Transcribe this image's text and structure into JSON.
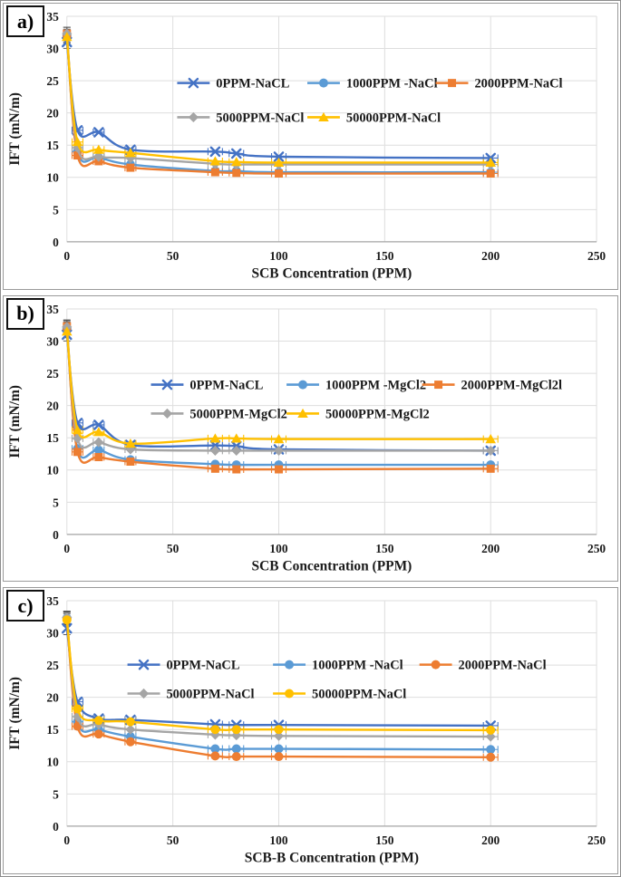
{
  "figure": {
    "panels": [
      {
        "label": "a)"
      },
      {
        "label": "b)"
      },
      {
        "label": "c)"
      }
    ]
  },
  "chart_data": [
    {
      "panel_label": "a)",
      "type": "line",
      "title": "",
      "xlabel": "SCB Concentration (PPM)",
      "ylabel": "IFT (mN/m)",
      "xlim": [
        0,
        250
      ],
      "ylim": [
        0,
        35
      ],
      "xticks": [
        0,
        50,
        100,
        150,
        200,
        250
      ],
      "yticks": [
        0,
        5,
        10,
        15,
        20,
        25,
        30,
        35
      ],
      "grid": true,
      "legend_position": "inside-top-two-rows",
      "x": [
        0,
        5,
        15,
        30,
        70,
        80,
        100,
        200
      ],
      "series": [
        {
          "name": "0PPM-NaCL",
          "color": "#4472C4",
          "marker": "x",
          "values": [
            31.0,
            17.3,
            17.0,
            14.3,
            14.0,
            13.7,
            13.2,
            13.0
          ]
        },
        {
          "name": "1000PPM -NaCl",
          "color": "#5B9BD5",
          "marker": "circle",
          "values": [
            32.0,
            14.0,
            13.1,
            12.0,
            11.0,
            11.0,
            10.8,
            10.8
          ]
        },
        {
          "name": "2000PPM-NaCl",
          "color": "#ED7D31",
          "marker": "square",
          "values": [
            32.3,
            13.4,
            12.5,
            11.5,
            10.8,
            10.7,
            10.6,
            10.6
          ]
        },
        {
          "name": "5000PPM-NaCl",
          "color": "#A5A5A5",
          "marker": "diamond",
          "values": [
            32.3,
            14.6,
            13.2,
            13.0,
            12.1,
            12.0,
            12.0,
            12.0
          ]
        },
        {
          "name": "50000PPM-NaCl",
          "color": "#FFC000",
          "marker": "triangle",
          "values": [
            31.8,
            15.5,
            14.3,
            13.8,
            12.5,
            12.4,
            12.3,
            12.3
          ]
        }
      ]
    },
    {
      "panel_label": "b)",
      "type": "line",
      "title": "",
      "xlabel": "SCB Concentration (PPM)",
      "ylabel": "IFT (mN/m)",
      "xlim": [
        0,
        250
      ],
      "ylim": [
        0,
        35
      ],
      "xticks": [
        0,
        50,
        100,
        150,
        200,
        250
      ],
      "yticks": [
        0,
        5,
        10,
        15,
        20,
        25,
        30,
        35
      ],
      "grid": true,
      "legend_position": "inside-top-two-rows",
      "x": [
        0,
        5,
        15,
        30,
        70,
        80,
        100,
        200
      ],
      "series": [
        {
          "name": "0PPM-NaCL",
          "color": "#4472C4",
          "marker": "x",
          "values": [
            31.0,
            17.3,
            17.0,
            13.9,
            13.8,
            13.7,
            13.2,
            13.0
          ]
        },
        {
          "name": "1000PPM -MgCl2",
          "color": "#5B9BD5",
          "marker": "circle",
          "values": [
            32.0,
            13.3,
            13.1,
            11.6,
            10.9,
            10.8,
            10.8,
            10.8
          ]
        },
        {
          "name": "2000PPM-MgCl2l",
          "color": "#ED7D31",
          "marker": "square",
          "values": [
            32.3,
            12.8,
            12.0,
            11.3,
            10.2,
            10.1,
            10.1,
            10.2
          ]
        },
        {
          "name": "5000PPM-MgCl2",
          "color": "#A5A5A5",
          "marker": "diamond",
          "values": [
            32.2,
            14.9,
            14.3,
            13.2,
            13.0,
            13.0,
            13.0,
            13.0
          ]
        },
        {
          "name": "50000PPM-MgCl2",
          "color": "#FFC000",
          "marker": "triangle",
          "values": [
            31.5,
            16.2,
            15.9,
            14.1,
            14.9,
            14.9,
            14.8,
            14.8
          ]
        }
      ]
    },
    {
      "panel_label": "c)",
      "type": "line",
      "title": "",
      "xlabel": "SCB-B Concentration (PPM)",
      "ylabel": "IFT (mN/m)",
      "xlim": [
        0,
        250
      ],
      "ylim": [
        0,
        35
      ],
      "xticks": [
        0,
        50,
        100,
        150,
        200,
        250
      ],
      "yticks": [
        0,
        5,
        10,
        15,
        20,
        25,
        30,
        35
      ],
      "grid": true,
      "legend_position": "inside-top-two-rows",
      "x": [
        0,
        5,
        15,
        30,
        70,
        80,
        100,
        200
      ],
      "series": [
        {
          "name": "0PPM-NaCL",
          "color": "#4472C4",
          "marker": "x",
          "values": [
            30.7,
            19.3,
            16.7,
            16.5,
            15.8,
            15.7,
            15.7,
            15.6
          ]
        },
        {
          "name": "1000PPM -NaCl",
          "color": "#5B9BD5",
          "marker": "circle",
          "values": [
            32.3,
            16.2,
            15.0,
            13.9,
            12.0,
            12.0,
            12.0,
            11.9
          ]
        },
        {
          "name": "2000PPM-NaCl",
          "color": "#ED7D31",
          "marker": "circle",
          "values": [
            32.2,
            15.5,
            14.3,
            13.1,
            10.9,
            10.8,
            10.8,
            10.7
          ]
        },
        {
          "name": "5000PPM-NaCl",
          "color": "#A5A5A5",
          "marker": "diamond",
          "values": [
            32.4,
            17.0,
            15.8,
            15.0,
            14.2,
            14.1,
            14.0,
            13.9
          ]
        },
        {
          "name": "50000PPM-NaCl",
          "color": "#FFC000",
          "marker": "circle",
          "values": [
            32.0,
            18.2,
            16.4,
            16.2,
            15.0,
            15.0,
            15.0,
            14.9
          ]
        }
      ]
    }
  ]
}
